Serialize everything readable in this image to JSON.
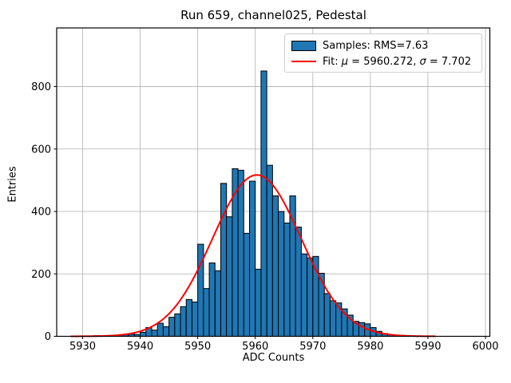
{
  "title": "Run 659, channel025, Pedestal",
  "legend": {
    "samples_label": "Samples: RMS=7.63",
    "fit_prefix": "Fit: ",
    "fit_mu_symbol": "μ",
    "fit_mu_mid": " = 5960.272, ",
    "fit_sigma_symbol": "σ",
    "fit_sigma_suffix": " = 7.702"
  },
  "colors": {
    "bar_fill": "#1f77b4",
    "bar_edge": "#000000",
    "fit_line": "#ff0000",
    "grid": "#b0b0b0",
    "axis": "#000000",
    "background": "#ffffff",
    "legend_border": "#cccccc"
  },
  "chart_data": {
    "type": "bar",
    "subtype": "histogram-with-gaussian-fit",
    "title": "Run 659, channel025, Pedestal",
    "xlabel": "ADC Counts",
    "ylabel": "Entries",
    "xlim": [
      5925.49,
      6000.76
    ],
    "ylim": [
      0,
      988
    ],
    "xticks": [
      5930,
      5940,
      5950,
      5960,
      5970,
      5980,
      5990,
      6000
    ],
    "yticks": [
      0,
      200,
      400,
      600,
      800
    ],
    "grid": true,
    "legend_position": "upper right",
    "samples_rms": 7.63,
    "histogram": {
      "bin_start": 5928,
      "bin_width": 1,
      "counts": [
        1,
        1,
        1,
        1,
        2,
        1,
        2,
        3,
        4,
        5,
        7,
        6,
        13,
        28,
        20,
        42,
        31,
        61,
        72,
        95,
        118,
        110,
        295,
        153,
        235,
        210,
        490,
        383,
        537,
        532,
        330,
        497,
        215,
        850,
        548,
        450,
        400,
        363,
        450,
        350,
        264,
        251,
        256,
        202,
        137,
        114,
        107,
        88,
        68,
        48,
        44,
        40,
        28,
        16,
        9,
        5,
        4,
        3,
        2,
        1,
        1,
        1,
        1
      ]
    },
    "fit": {
      "mu": 5960.272,
      "sigma": 7.702,
      "amplitude": 517,
      "range": [
        5928,
        5991.3
      ]
    }
  }
}
